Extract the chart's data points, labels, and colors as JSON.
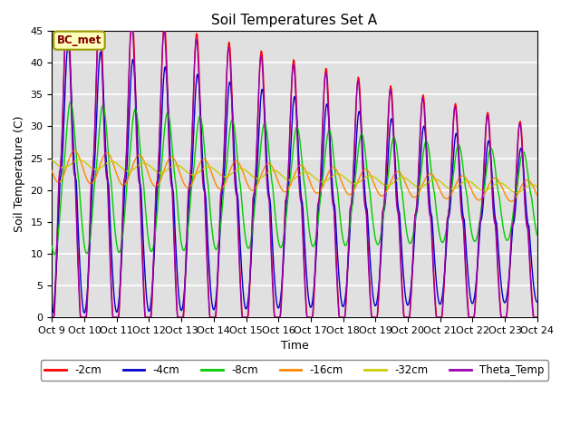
{
  "title": "Soil Temperatures Set A",
  "xlabel": "Time",
  "ylabel": "Soil Temperature (C)",
  "ylim": [
    0,
    45
  ],
  "annotation": "BC_met",
  "xtick_labels": [
    "Oct 9",
    "Oct 10",
    "Oct 11",
    "Oct 12",
    "Oct 13",
    "Oct 14",
    "Oct 15",
    "Oct 16",
    "Oct 17",
    "Oct 18",
    "Oct 19",
    "Oct 20",
    "Oct 21",
    "Oct 22",
    "Oct 23",
    "Oct 24"
  ],
  "legend_labels": [
    "-2cm",
    "-4cm",
    "-8cm",
    "-16cm",
    "-32cm",
    "Theta_Temp"
  ],
  "line_colors": [
    "#FF0000",
    "#0000CC",
    "#00CC00",
    "#FF8800",
    "#CCCC00",
    "#9900AA"
  ],
  "bg_color": "#E0E0E0",
  "title_fontsize": 11,
  "label_fontsize": 9,
  "tick_fontsize": 8
}
